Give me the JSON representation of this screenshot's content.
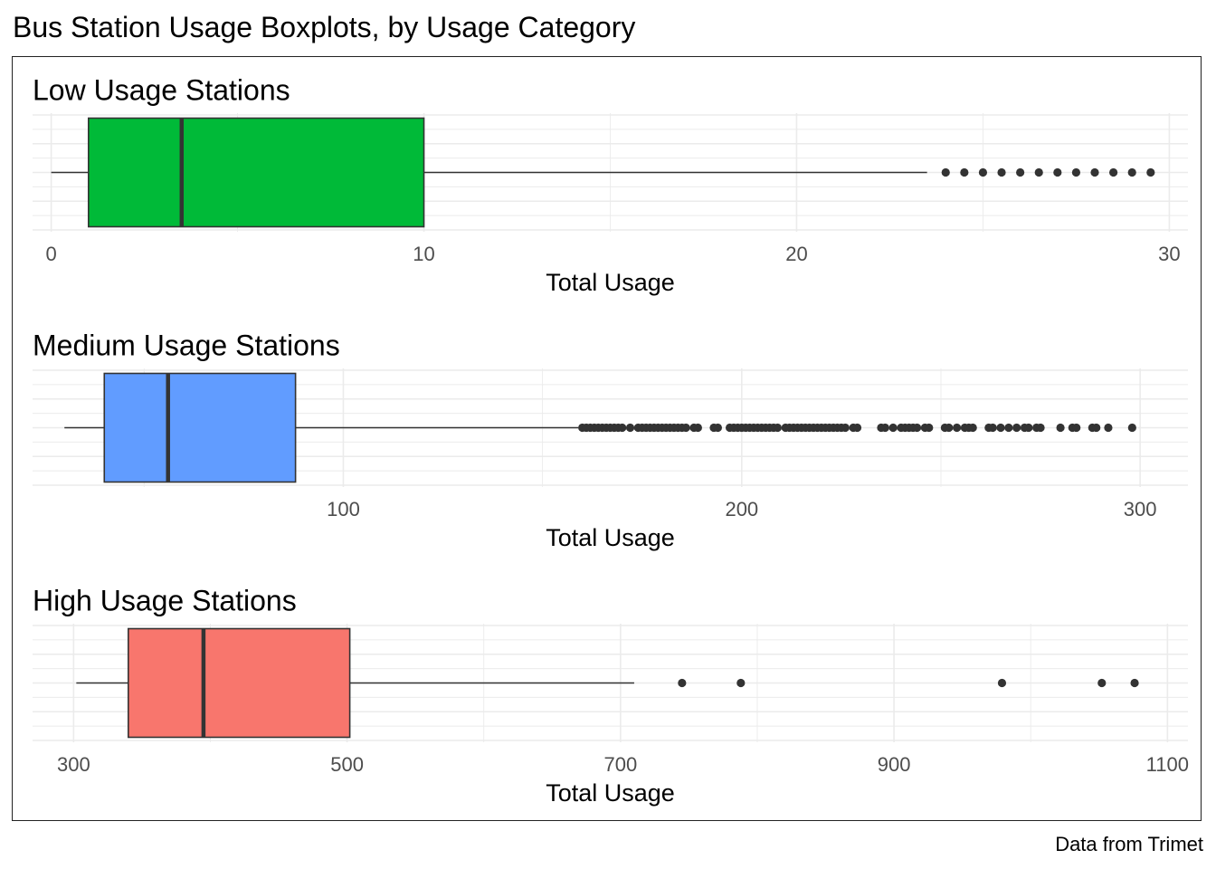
{
  "title": "Bus Station Usage Boxplots, by Usage Category",
  "caption": "Data from Trimet",
  "chart_data": [
    {
      "type": "boxplot",
      "title": "Low Usage Stations",
      "xlabel": "Total Usage",
      "xlim": [
        -0.5,
        30.5
      ],
      "xticks": [
        0,
        10,
        20,
        30
      ],
      "fill": "#00BA38",
      "box": {
        "whisker_low": 0,
        "q1": 1,
        "median": 3.5,
        "q3": 10,
        "whisker_high": 23.5
      },
      "outliers": [
        24,
        24.5,
        25,
        25.5,
        26,
        26.5,
        27,
        27.5,
        28,
        28.5,
        29,
        29.5
      ]
    },
    {
      "type": "boxplot",
      "title": "Medium Usage Stations",
      "xlabel": "Total Usage",
      "xlim": [
        22,
        312
      ],
      "xticks": [
        100,
        200,
        300
      ],
      "fill": "#619CFF",
      "box": {
        "whisker_low": 30,
        "q1": 40,
        "median": 56,
        "q3": 88,
        "whisker_high": 159
      },
      "outliers": [
        160,
        161,
        162,
        163,
        164,
        165,
        166,
        167,
        168,
        169,
        170,
        172,
        174,
        175,
        176,
        177,
        178,
        179,
        180,
        181,
        182,
        183,
        184,
        185,
        186,
        188,
        189,
        193,
        194,
        197,
        198,
        199,
        200,
        201,
        202,
        203,
        204,
        205,
        206,
        207,
        208,
        209,
        211,
        212,
        213,
        214,
        215,
        216,
        217,
        218,
        219,
        220,
        221,
        222,
        223,
        224,
        225,
        226,
        228,
        229,
        235,
        236,
        238,
        240,
        241,
        242,
        243,
        244,
        246,
        247,
        251,
        252,
        254,
        256,
        257,
        258,
        262,
        263,
        265,
        267,
        269,
        271,
        272,
        274,
        275,
        280,
        283,
        284,
        288,
        289,
        292,
        298
      ]
    },
    {
      "type": "boxplot",
      "title": "High Usage Stations",
      "xlabel": "Total Usage",
      "xlim": [
        270,
        1115
      ],
      "xticks": [
        300,
        500,
        700,
        900,
        1100
      ],
      "fill": "#F8766D",
      "box": {
        "whisker_low": 302,
        "q1": 340,
        "median": 395,
        "q3": 502,
        "whisker_high": 710
      },
      "outliers": [
        745,
        788,
        979,
        1052,
        1076
      ]
    }
  ]
}
